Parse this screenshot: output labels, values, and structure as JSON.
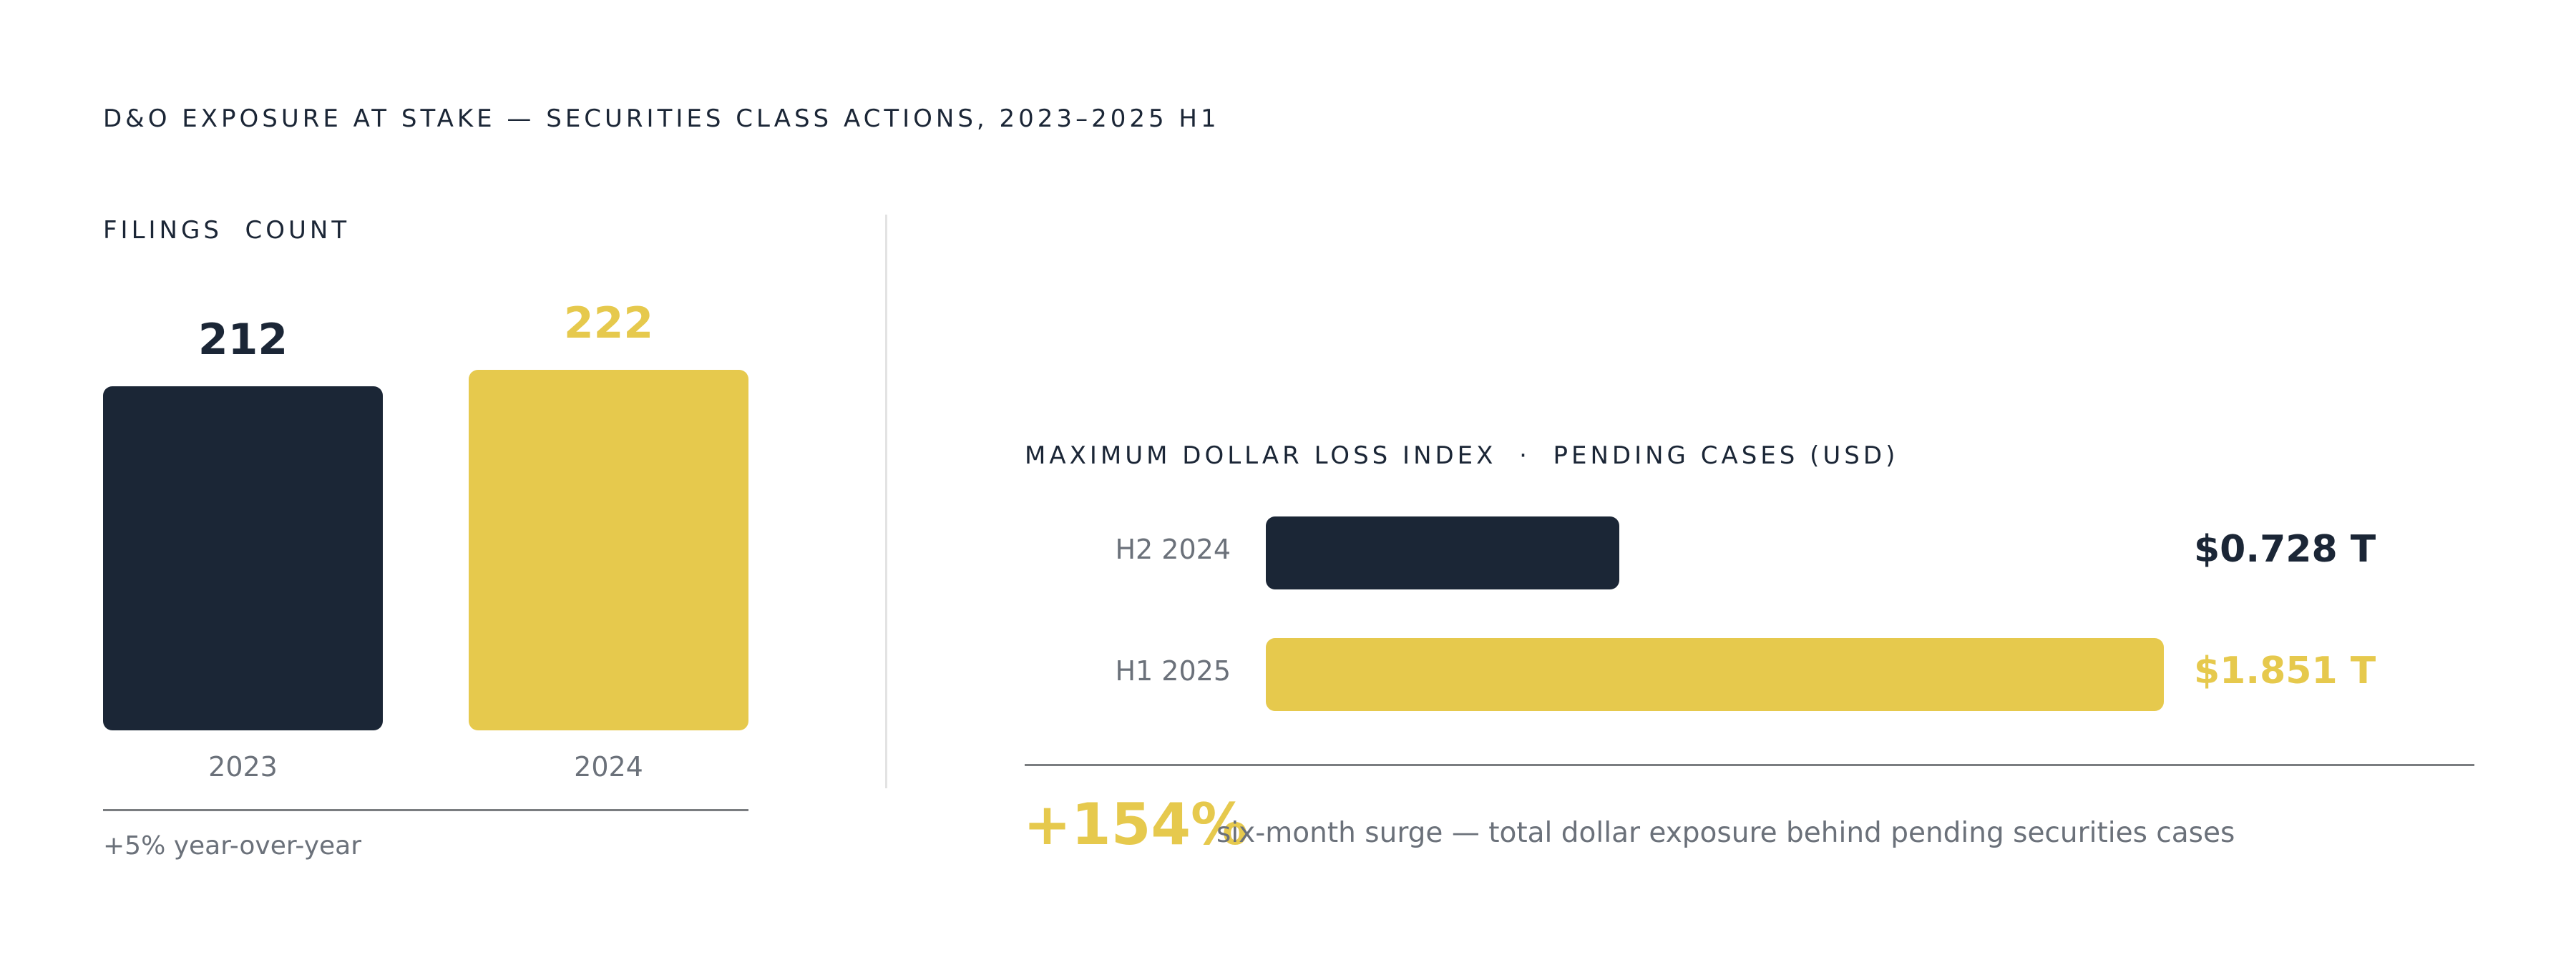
{
  "title": "D&O EXPOSURE AT STAKE — SECURITIES CLASS ACTIONS, 2023–2025 H1",
  "colors": {
    "navy": "#1b2636",
    "gold": "#e6c94d",
    "muted": "#6b717a"
  },
  "chart_data": [
    {
      "type": "bar",
      "orientation": "vertical",
      "label": "FILINGS  COUNT",
      "categories": [
        "2023",
        "2024"
      ],
      "values": [
        212,
        222
      ],
      "value_labels": [
        "212",
        "222"
      ],
      "colors": [
        "#1b2636",
        "#e6c94d"
      ],
      "footnote": "+5% year-over-year"
    },
    {
      "type": "bar",
      "orientation": "horizontal",
      "label": "MAXIMUM DOLLAR LOSS INDEX  ·  PENDING CASES (USD)",
      "unit": "T",
      "categories": [
        "H2 2024",
        "H1 2025"
      ],
      "values": [
        0.728,
        1.851
      ],
      "value_labels": [
        "$0.728 T",
        "$1.851 T"
      ],
      "colors": [
        "#1b2636",
        "#e6c94d"
      ],
      "callout": {
        "value": "+154%",
        "text": "six-month surge — total dollar exposure behind pending securities cases"
      }
    }
  ]
}
